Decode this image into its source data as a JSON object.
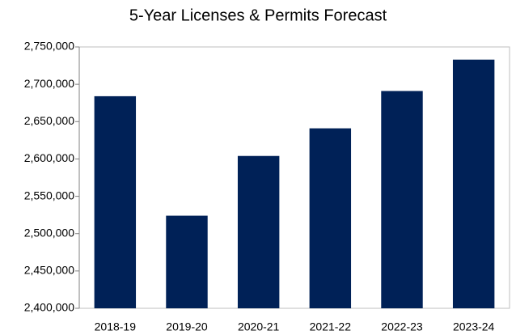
{
  "chart_data": {
    "type": "bar",
    "title": "5-Year Licenses & Permits Forecast",
    "categories": [
      "2018-19",
      "2019-20",
      "2020-21",
      "2021-22",
      "2022-23",
      "2023-24"
    ],
    "values": [
      2684000,
      2524000,
      2604000,
      2641000,
      2691000,
      2733000
    ],
    "color": "#002157",
    "ylim": [
      2400000,
      2750000
    ],
    "yticks": [
      {
        "value": 2400000,
        "label": "2,400,000"
      },
      {
        "value": 2450000,
        "label": "2,450,000"
      },
      {
        "value": 2500000,
        "label": "2,500,000"
      },
      {
        "value": 2550000,
        "label": "2,550,000"
      },
      {
        "value": 2600000,
        "label": "2,600,000"
      },
      {
        "value": 2650000,
        "label": "2,650,000"
      },
      {
        "value": 2700000,
        "label": "2,700,000"
      },
      {
        "value": 2750000,
        "label": "2,750,000"
      }
    ],
    "grid": false
  }
}
